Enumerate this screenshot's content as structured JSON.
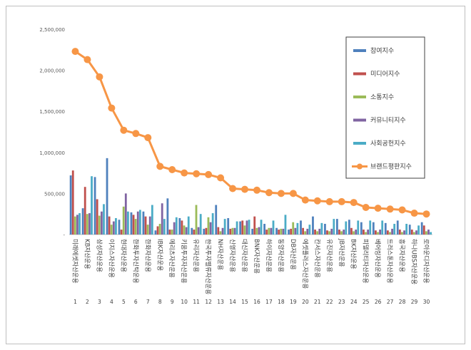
{
  "chart_data": {
    "type": "bar",
    "title": "",
    "xlabel": "",
    "ylabel": "",
    "ylim": [
      0,
      2500000
    ],
    "yticks": [
      "-",
      "500,000",
      "1,000,000",
      "1,500,000",
      "2,000,000",
      "2,500,000"
    ],
    "grid": false,
    "legend_position": "top-right",
    "ranks": [
      1,
      2,
      3,
      4,
      5,
      6,
      7,
      8,
      9,
      10,
      11,
      12,
      13,
      14,
      15,
      16,
      17,
      18,
      19,
      20,
      21,
      22,
      23,
      24,
      25,
      26,
      27,
      28,
      29,
      30
    ],
    "categories": [
      "미래에셋자산운용",
      "KB자산운용",
      "삼성자산운용",
      "이지스자산운용",
      "현대자산운용",
      "한화투자신탁운용",
      "한화자산운용",
      "IBK자산운용",
      "메리츠자산운용",
      "키움투자자산운용",
      "유리자산운용",
      "한국투자밸류자산운용",
      "NH자산운용",
      "신영자산운용",
      "대신자산운용",
      "BNK자산운용",
      "하이자산운용",
      "동양자산운용",
      "DB자산운용",
      "에셋플러스자산운용",
      "칸서스자산운용",
      "유진자산운용",
      "JB자산운용",
      "BK자산운용",
      "피델리티자산운용",
      "베어링자산운용",
      "트러스톤자산운용",
      "흥국자산운용",
      "하나UBS자산운용",
      "로아운디자산운용"
    ],
    "series": [
      {
        "name": "참여지수",
        "type": "bar",
        "color": "#4f81bd",
        "values": [
          720000,
          320000,
          700000,
          930000,
          180000,
          270000,
          280000,
          50000,
          440000,
          200000,
          80000,
          70000,
          360000,
          200000,
          160000,
          70000,
          130000,
          80000,
          60000,
          170000,
          220000,
          130000,
          190000,
          180000,
          150000,
          150000,
          140000,
          170000,
          120000,
          150000
        ]
      },
      {
        "name": "미디어지수",
        "type": "bar",
        "color": "#c0504d",
        "values": [
          780000,
          580000,
          430000,
          220000,
          60000,
          240000,
          220000,
          100000,
          60000,
          170000,
          60000,
          80000,
          90000,
          70000,
          170000,
          220000,
          60000,
          60000,
          70000,
          80000,
          60000,
          50000,
          60000,
          80000,
          60000,
          50000,
          50000,
          60000,
          60000,
          110000
        ]
      },
      {
        "name": "소통지수",
        "type": "bar",
        "color": "#9bbb59",
        "values": [
          220000,
          250000,
          230000,
          120000,
          340000,
          190000,
          120000,
          130000,
          60000,
          110000,
          360000,
          210000,
          40000,
          80000,
          110000,
          80000,
          80000,
          70000,
          150000,
          40000,
          40000,
          40000,
          40000,
          40000,
          30000,
          30000,
          30000,
          30000,
          30000,
          40000
        ]
      },
      {
        "name": "커뮤니티지수",
        "type": "bar",
        "color": "#8064a2",
        "values": [
          240000,
          260000,
          280000,
          160000,
          500000,
          280000,
          220000,
          380000,
          150000,
          90000,
          90000,
          150000,
          80000,
          80000,
          170000,
          90000,
          80000,
          70000,
          80000,
          70000,
          70000,
          70000,
          60000,
          60000,
          60000,
          60000,
          70000,
          50000,
          50000,
          60000
        ]
      },
      {
        "name": "사회공헌지수",
        "type": "bar",
        "color": "#4bacc6",
        "values": [
          260000,
          710000,
          370000,
          200000,
          280000,
          300000,
          360000,
          190000,
          210000,
          220000,
          250000,
          260000,
          190000,
          160000,
          180000,
          180000,
          170000,
          240000,
          140000,
          120000,
          140000,
          190000,
          160000,
          170000,
          170000,
          170000,
          130000,
          130000,
          110000,
          30000
        ]
      },
      {
        "name": "브랜드평판지수",
        "type": "line",
        "color": "#f79646",
        "values": [
          2230000,
          2130000,
          1920000,
          1540000,
          1270000,
          1230000,
          1180000,
          830000,
          790000,
          750000,
          740000,
          730000,
          690000,
          560000,
          550000,
          540000,
          510000,
          500000,
          500000,
          420000,
          410000,
          400000,
          400000,
          390000,
          330000,
          320000,
          310000,
          300000,
          260000,
          250000
        ]
      }
    ]
  }
}
